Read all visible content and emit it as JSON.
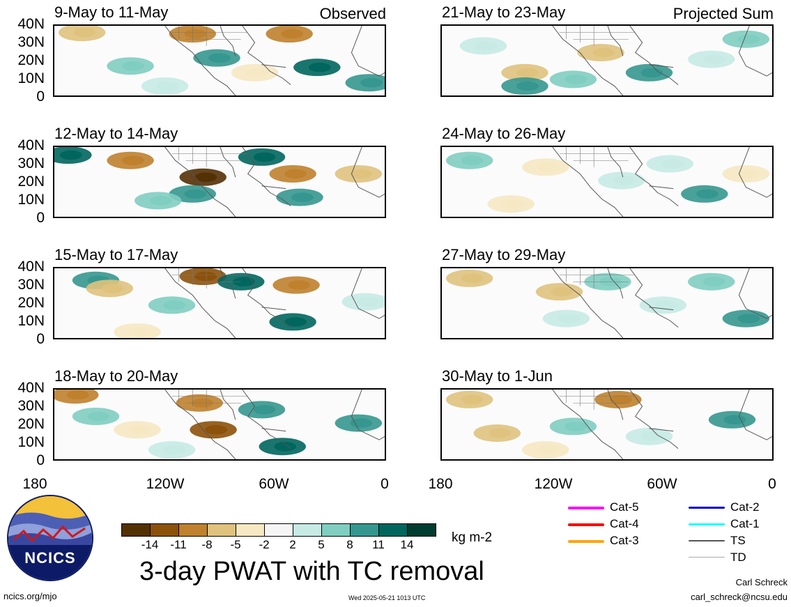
{
  "panels_left": [
    {
      "title": "9-May to 11-May",
      "corner": "Observed"
    },
    {
      "title": "12-May to 14-May",
      "corner": ""
    },
    {
      "title": "15-May to 17-May",
      "corner": ""
    },
    {
      "title": "18-May to 20-May",
      "corner": ""
    }
  ],
  "panels_right": [
    {
      "title": "21-May to 23-May",
      "corner": "Projected Sum"
    },
    {
      "title": "24-May to 26-May",
      "corner": ""
    },
    {
      "title": "27-May to 29-May",
      "corner": ""
    },
    {
      "title": "30-May to 1-Jun",
      "corner": ""
    }
  ],
  "y_ticks": [
    "40N",
    "30N",
    "20N",
    "10N",
    "0"
  ],
  "x_ticks": [
    "180",
    "120W",
    "60W",
    "0"
  ],
  "colorbar": {
    "labels": [
      "-14",
      "-11",
      "-8",
      "-5",
      "-2",
      "2",
      "5",
      "8",
      "11",
      "14"
    ],
    "colors": [
      "#543005",
      "#8c510a",
      "#bf812d",
      "#dfc27d",
      "#f6e8c3",
      "#f5f5f5",
      "#c7eae5",
      "#80cdc1",
      "#35978f",
      "#01665e",
      "#003c30"
    ],
    "units": "kg m-2"
  },
  "title": "3-day PWAT with TC removal",
  "legend": [
    {
      "label": "Cat-5",
      "color": "#ff00ff"
    },
    {
      "label": "Cat-4",
      "color": "#ff0000"
    },
    {
      "label": "Cat-3",
      "color": "#ffa500"
    },
    {
      "label": "Cat-2",
      "color": "#0000cc"
    },
    {
      "label": "Cat-1",
      "color": "#00ffff"
    },
    {
      "label": "TS",
      "color": "#555555"
    },
    {
      "label": "TD",
      "color": "#aaaaaa"
    }
  ],
  "logo_text": "NCICS",
  "footer": {
    "left": "ncics.org/mjo",
    "center": "Wed 2025-05-21 1013 UTC",
    "author": "Carl Schreck",
    "email": "carl_schreck@ncsu.edu"
  }
}
